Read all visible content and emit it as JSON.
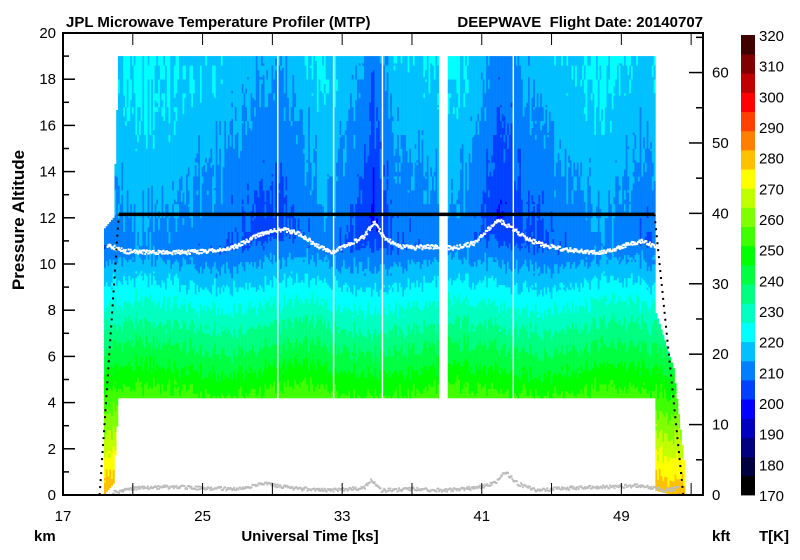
{
  "chart_data": {
    "type": "heatmap",
    "title": "JPL Microwave Temperature Profiler (MTP)",
    "subtitle": "DEEPWAVE  Flight Date: 20140707",
    "xlabel": "Universal Time [ks]",
    "ylabel": "Pressure Altitude",
    "left_unit": "km",
    "right_unit": "kft",
    "colorbar_unit": "T[K]",
    "xlim": [
      17,
      53.68
    ],
    "ylim_km": [
      0,
      20
    ],
    "ylim_kft": [
      0,
      65.6
    ],
    "x_ticks": [
      17,
      25,
      33,
      41,
      49
    ],
    "x_minor_step": 4,
    "y_ticks_km": [
      0,
      2,
      4,
      6,
      8,
      10,
      12,
      14,
      16,
      18,
      20
    ],
    "y_ticks_kft": [
      0,
      10,
      20,
      30,
      40,
      50,
      60
    ],
    "colorbar": {
      "min": 170,
      "max": 320,
      "labels": [
        170,
        180,
        190,
        200,
        210,
        220,
        230,
        240,
        250,
        260,
        270,
        280,
        290,
        300,
        310,
        320
      ],
      "colors": [
        "#000000",
        "#000040",
        "#000080",
        "#0000c0",
        "#0000ff",
        "#0040ff",
        "#0080ff",
        "#00c0ff",
        "#00ffff",
        "#00ffc0",
        "#00ff80",
        "#00ff40",
        "#00ff00",
        "#40ff00",
        "#80ff00",
        "#c0ff00",
        "#ffff00",
        "#ffc000",
        "#ff8000",
        "#ff4000",
        "#ff0000",
        "#c00000",
        "#800000",
        "#400000"
      ]
    },
    "temperature_model": {
      "surface_T_K": 282,
      "lapse_rate_K_per_km": 6.8,
      "stratosphere_rate_K_per_km": 1.3,
      "stratosphere_cap_K": 219.5
    },
    "coverage": [
      [
        19.35,
        0,
        11.5
      ],
      [
        19.9,
        0.5,
        12.0
      ],
      [
        20.2,
        4.2,
        19.0
      ],
      [
        50.9,
        4.2,
        19.0
      ],
      [
        50.95,
        0.2,
        8.0
      ],
      [
        52.0,
        0,
        5.5
      ],
      [
        52.6,
        0,
        1.5
      ]
    ],
    "data_gaps": [
      [
        29.22,
        29.4
      ],
      [
        32.5,
        32.58
      ],
      [
        35.3,
        35.38
      ],
      [
        38.6,
        39.1
      ],
      [
        42.78,
        42.86
      ]
    ],
    "tropopause_km": [
      [
        19.5,
        10.8
      ],
      [
        20.5,
        10.55
      ],
      [
        22,
        10.5
      ],
      [
        24,
        10.5
      ],
      [
        26,
        10.6
      ],
      [
        27,
        10.8
      ],
      [
        28,
        11.2
      ],
      [
        28.8,
        11.4
      ],
      [
        29.6,
        11.5
      ],
      [
        30.5,
        11.3
      ],
      [
        31.5,
        10.8
      ],
      [
        32.3,
        10.5
      ],
      [
        33.2,
        10.8
      ],
      [
        34.2,
        11.2
      ],
      [
        34.8,
        11.8
      ],
      [
        35.3,
        11.2
      ],
      [
        36,
        10.8
      ],
      [
        37,
        10.7
      ],
      [
        38,
        10.75
      ],
      [
        39.5,
        10.7
      ],
      [
        40.5,
        10.9
      ],
      [
        41.3,
        11.5
      ],
      [
        41.9,
        11.9
      ],
      [
        42.6,
        11.6
      ],
      [
        43.5,
        11.1
      ],
      [
        44.5,
        10.8
      ],
      [
        46,
        10.6
      ],
      [
        47.5,
        10.5
      ],
      [
        48.5,
        10.6
      ],
      [
        49.5,
        10.9
      ],
      [
        50.3,
        11.0
      ],
      [
        50.9,
        10.7
      ]
    ],
    "aircraft_altitude_km": [
      [
        19.1,
        0
      ],
      [
        20.2,
        12.15
      ],
      [
        50.9,
        12.15
      ],
      [
        52.55,
        0
      ]
    ],
    "ground_km": [
      [
        19.8,
        0.1
      ],
      [
        21,
        0.3
      ],
      [
        23,
        0.35
      ],
      [
        25,
        0.3
      ],
      [
        27,
        0.25
      ],
      [
        28.5,
        0.5
      ],
      [
        30,
        0.3
      ],
      [
        32,
        0.2
      ],
      [
        34.2,
        0.3
      ],
      [
        34.6,
        0.65
      ],
      [
        35.2,
        0.2
      ],
      [
        37,
        0.25
      ],
      [
        39,
        0.2
      ],
      [
        40.5,
        0.3
      ],
      [
        41.7,
        0.5
      ],
      [
        42.3,
        1.0
      ],
      [
        43,
        0.5
      ],
      [
        44,
        0.2
      ],
      [
        46,
        0.3
      ],
      [
        48,
        0.35
      ],
      [
        50,
        0.4
      ],
      [
        51.5,
        0.2
      ],
      [
        52.2,
        0.3
      ]
    ]
  }
}
